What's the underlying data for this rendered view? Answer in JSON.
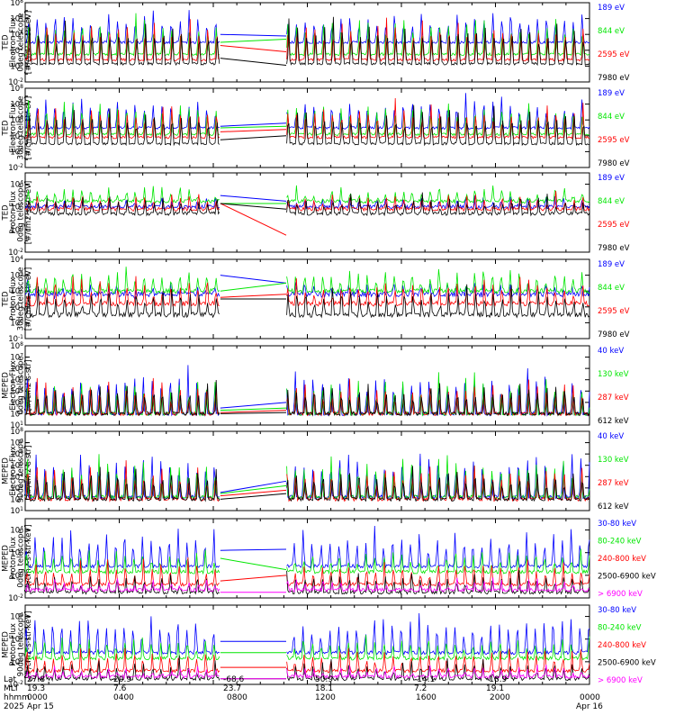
{
  "colors": {
    "blue": "#0000ff",
    "red": "#ff0000",
    "green": "#00e600",
    "black": "#000000",
    "magenta": "#ff00ff"
  },
  "chart_data": [
    {
      "type": "line",
      "ylabel": [
        "TED",
        "Electron Flux",
        "0deg telescope",
        "[#/cm2-s-str-eV]"
      ],
      "ylim": [
        0.01,
        100000000
      ],
      "yscale": "log",
      "yticks": [
        "10^-2",
        "10^0",
        "10^2",
        "10^4",
        "10^6",
        "10^8"
      ],
      "series": [
        {
          "name": "7980 eV",
          "color": "black",
          "base_exp": 0.3,
          "spike_exp": 6.5,
          "outside_gap": [
            1,
            0.1
          ]
        },
        {
          "name": "2595 eV",
          "color": "red",
          "base_exp": 0.8,
          "spike_exp": 6.2,
          "outside_gap": [
            2.6,
            1.8
          ]
        },
        {
          "name": "844 eV",
          "color": "green",
          "base_exp": 1.5,
          "spike_exp": 6.6,
          "outside_gap": [
            3.0,
            3.4
          ]
        },
        {
          "name": "189 eV",
          "color": "blue",
          "base_exp": 3.0,
          "spike_exp": 7.2,
          "outside_gap": [
            4.0,
            3.8
          ]
        }
      ]
    },
    {
      "type": "line",
      "ylabel": [
        "TED",
        "Electron Flux",
        "30deg telescope",
        "[#/cm2-s-str-eV]"
      ],
      "ylim": [
        0.01,
        100000000
      ],
      "yscale": "log",
      "yticks": [
        "10^-2",
        "10^0",
        "10^2",
        "10^4",
        "10^6",
        "10^8"
      ],
      "series": [
        {
          "name": "7980 eV",
          "color": "black",
          "base_exp": 1.0,
          "spike_exp": 6.0,
          "outside_gap": [
            1.5,
            2.0
          ]
        },
        {
          "name": "2595 eV",
          "color": "red",
          "base_exp": 1.8,
          "spike_exp": 6.3,
          "outside_gap": [
            2.5,
            2.8
          ]
        },
        {
          "name": "844 eV",
          "color": "green",
          "base_exp": 2.2,
          "spike_exp": 6.6,
          "outside_gap": [
            3.0,
            3.2
          ]
        },
        {
          "name": "189 eV",
          "color": "blue",
          "base_exp": 3.0,
          "spike_exp": 7.2,
          "outside_gap": [
            3.2,
            3.6
          ]
        }
      ]
    },
    {
      "type": "line",
      "ylabel": [
        "TED",
        "Proton Flux",
        "0deg telescope",
        "[#/cm2-s-str-eV]"
      ],
      "ylim": [
        0.01,
        100000
      ],
      "yscale": "log",
      "yticks": [
        "10^-2",
        "10^0",
        "10^2",
        "10^4"
      ],
      "series": [
        {
          "name": "7980 eV",
          "color": "black",
          "base_exp": 1.4,
          "spike_exp": 3.0,
          "outside_gap": [
            2.3,
            1.8
          ]
        },
        {
          "name": "2595 eV",
          "color": "red",
          "base_exp": 1.8,
          "spike_exp": 3.0,
          "outside_gap": [
            2.3,
            -0.5
          ]
        },
        {
          "name": "844 eV",
          "color": "green",
          "base_exp": 2.5,
          "spike_exp": 3.6,
          "outside_gap": [
            2.3,
            2.3
          ]
        },
        {
          "name": "189 eV",
          "color": "blue",
          "base_exp": 2.0,
          "spike_exp": 2.6,
          "outside_gap": [
            3.0,
            2.5
          ]
        }
      ]
    },
    {
      "type": "line",
      "ylabel": [
        "TED",
        "Proton Flux",
        "30deg telescope",
        "[#/cm2-s-str-eV]"
      ],
      "ylim": [
        0.1,
        10000
      ],
      "yscale": "log",
      "yticks": [
        "10^-1",
        "10^0",
        "10^1",
        "10^2",
        "10^3",
        "10^4"
      ],
      "series": [
        {
          "name": "7980 eV",
          "color": "black",
          "base_exp": 0.5,
          "spike_exp": 2.4,
          "outside_gap": [
            1.5,
            1.5
          ]
        },
        {
          "name": "2595 eV",
          "color": "red",
          "base_exp": 1.2,
          "spike_exp": 2.8,
          "outside_gap": [
            1.6,
            1.8
          ]
        },
        {
          "name": "844 eV",
          "color": "green",
          "base_exp": 2.0,
          "spike_exp": 3.3,
          "outside_gap": [
            2.0,
            2.5
          ]
        },
        {
          "name": "189 eV",
          "color": "blue",
          "base_exp": 1.8,
          "spike_exp": 2.2,
          "outside_gap": [
            3.0,
            2.5
          ]
        }
      ]
    },
    {
      "type": "line",
      "ylabel": [
        "MEPED",
        "Electron Flux",
        "0deg telescope",
        "[#/cm2-s-str]"
      ],
      "ylim": [
        10,
        100000000
      ],
      "yscale": "log",
      "yticks": [
        "10^1",
        "10^2",
        "10^3",
        "10^4",
        "10^5",
        "10^6",
        "10^7",
        "10^8"
      ],
      "series": [
        {
          "name": "612 keV",
          "color": "black",
          "base_exp": 2.0,
          "spike_exp": 4.8,
          "outside_gap": [
            2.0,
            2.1
          ]
        },
        {
          "name": "287 keV",
          "color": "red",
          "base_exp": 2.0,
          "spike_exp": 5.0,
          "outside_gap": [
            2.1,
            2.3
          ]
        },
        {
          "name": "130 keV",
          "color": "green",
          "base_exp": 2.0,
          "spike_exp": 5.4,
          "outside_gap": [
            2.3,
            2.5
          ]
        },
        {
          "name": "40 keV",
          "color": "blue",
          "base_exp": 2.0,
          "spike_exp": 6.2,
          "outside_gap": [
            2.5,
            3.0
          ]
        }
      ]
    },
    {
      "type": "line",
      "ylabel": [
        "MEPED",
        "Electron Flux",
        "90deg telescope",
        "[#/cm2-s-str]"
      ],
      "ylim": [
        10,
        100000000
      ],
      "yscale": "log",
      "yticks": [
        "10^1",
        "10^2",
        "10^3",
        "10^4",
        "10^5",
        "10^6",
        "10^7",
        "10^8"
      ],
      "series": [
        {
          "name": "612 keV",
          "color": "black",
          "base_exp": 2.0,
          "spike_exp": 5.0,
          "outside_gap": [
            2.0,
            2.5
          ]
        },
        {
          "name": "287 keV",
          "color": "red",
          "base_exp": 2.0,
          "spike_exp": 5.4,
          "outside_gap": [
            2.3,
            2.8
          ]
        },
        {
          "name": "130 keV",
          "color": "green",
          "base_exp": 2.2,
          "spike_exp": 5.8,
          "outside_gap": [
            2.5,
            3.2
          ]
        },
        {
          "name": "40 keV",
          "color": "blue",
          "base_exp": 2.2,
          "spike_exp": 6.4,
          "outside_gap": [
            2.6,
            3.6
          ]
        }
      ]
    },
    {
      "type": "line",
      "ylabel": [
        "MEPED",
        "Proton Flux",
        "0deg telescope",
        "[#/cm2-s-str-keV]"
      ],
      "ylim": [
        0.01,
        100000
      ],
      "yscale": "log",
      "yticks": [
        "10^-2",
        "10^0",
        "10^2",
        "10^4"
      ],
      "series": [
        {
          "name": "> 6900 keV",
          "color": "magenta",
          "base_exp": -1.3,
          "spike_exp": -0.6,
          "outside_gap": [
            -1.5,
            -1.5
          ]
        },
        {
          "name": "2500-6900 keV",
          "color": "black",
          "base_exp": -1.5,
          "spike_exp": 0.2,
          "outside_gap": [
            -2.0,
            -2.0
          ]
        },
        {
          "name": "240-800 keV",
          "color": "red",
          "base_exp": -0.8,
          "spike_exp": 1.2,
          "outside_gap": [
            -0.5,
            0.0
          ]
        },
        {
          "name": "80-240 keV",
          "color": "green",
          "base_exp": 0.3,
          "spike_exp": 2.2,
          "outside_gap": [
            1.5,
            0.5
          ]
        },
        {
          "name": "30-80 keV",
          "color": "blue",
          "base_exp": 0.8,
          "spike_exp": 4.2,
          "outside_gap": [
            2.2,
            2.3
          ]
        }
      ]
    },
    {
      "type": "line",
      "ylabel": [
        "MEPED",
        "Proton Flux",
        "90deg telescope",
        "[#/cm2-s-str-keV]"
      ],
      "ylim": [
        0.01,
        100000
      ],
      "yscale": "log",
      "yticks": [
        "10^-2",
        "10^0",
        "10^2",
        "10^4"
      ],
      "series": [
        {
          "name": "> 6900 keV",
          "color": "magenta",
          "base_exp": -1.3,
          "spike_exp": -0.6,
          "outside_gap": [
            -1.5,
            -1.5
          ]
        },
        {
          "name": "2500-6900 keV",
          "color": "black",
          "base_exp": -1.5,
          "spike_exp": 0.2,
          "outside_gap": [
            -1.5,
            -1.5
          ]
        },
        {
          "name": "240-800 keV",
          "color": "red",
          "base_exp": -0.8,
          "spike_exp": 1.2,
          "outside_gap": [
            -0.5,
            -0.5
          ]
        },
        {
          "name": "80-240 keV",
          "color": "green",
          "base_exp": 0.3,
          "spike_exp": 2.2,
          "outside_gap": [
            0.8,
            0.8
          ]
        },
        {
          "name": "30-80 keV",
          "color": "blue",
          "base_exp": 0.8,
          "spike_exp": 4.2,
          "outside_gap": [
            1.8,
            1.8
          ]
        }
      ]
    }
  ],
  "x_axis": {
    "data_gap_hours": [
      8.3,
      11.1
    ],
    "range_hours": [
      0,
      24
    ],
    "rows": [
      {
        "label": "Lat",
        "values": [
          "27.8",
          "20.9",
          "-68.6",
          "50.9",
          "-14.1",
          "-18.9",
          ""
        ]
      },
      {
        "label": "MLT",
        "values": [
          "19.3",
          "7.6",
          "23.7",
          "18.1",
          "7.2",
          "19.1",
          ""
        ]
      },
      {
        "label": "hhmm",
        "values": [
          "0000",
          "0400",
          "0800",
          "1200",
          "1600",
          "2000",
          "0000"
        ]
      },
      {
        "label": "2025",
        "values": [
          "Apr 15",
          "",
          "",
          "",
          "",
          "",
          "Apr 16"
        ]
      }
    ]
  }
}
